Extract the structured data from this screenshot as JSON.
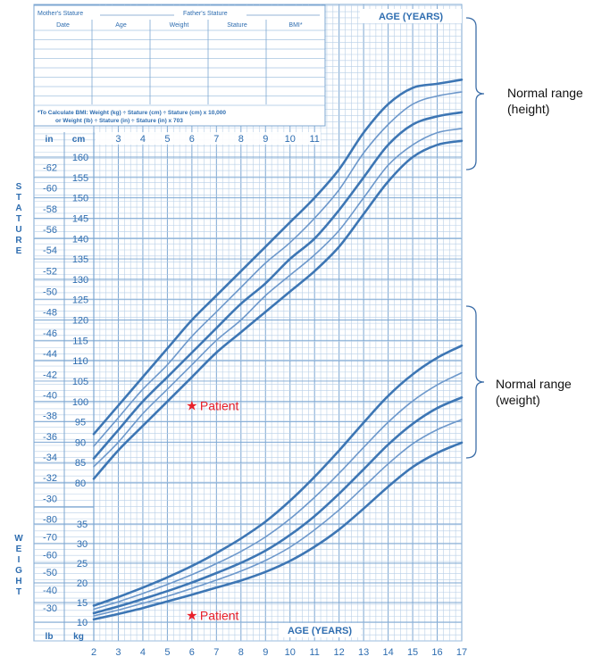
{
  "chart_data": {
    "type": "line",
    "title": "",
    "header": {
      "mothers_stature": "Mother's Stature",
      "fathers_stature": "Father's Stature",
      "columns": [
        "Date",
        "Age",
        "Weight",
        "Stature",
        "BMI*"
      ],
      "bmi_note_line1": "*To Calculate BMI: Weight (kg) ÷ Stature (cm) ÷ Stature (cm) x 10,000",
      "bmi_note_line2": "or Weight (lb) ÷ Stature (in) ÷ Stature (in) x 703"
    },
    "age_axis_label": "AGE (YEARS)",
    "stature_label": "STATURE",
    "weight_label": "WEIGHT",
    "unit_labels": {
      "in": "in",
      "cm": "cm",
      "lb": "lb",
      "kg": "kg"
    },
    "x_ticks_bottom": [
      "2",
      "3",
      "4",
      "5",
      "6",
      "7",
      "8",
      "9",
      "10",
      "11",
      "12",
      "13",
      "14",
      "15",
      "16",
      "17"
    ],
    "x_ticks_top": [
      "3",
      "4",
      "5",
      "6",
      "7",
      "8",
      "9",
      "10",
      "11"
    ],
    "x_range": [
      2,
      17
    ],
    "stature": {
      "ylim_cm": [
        80,
        160
      ],
      "cm_ticks": [
        "80",
        "85",
        "90",
        "95",
        "100",
        "105",
        "110",
        "115",
        "120",
        "125",
        "130",
        "135",
        "140",
        "145",
        "150",
        "155",
        "160"
      ],
      "in_ticks": [
        "30",
        "32",
        "34",
        "36",
        "38",
        "40",
        "42",
        "44",
        "46",
        "48",
        "50",
        "52",
        "54",
        "56",
        "58",
        "60",
        "62"
      ],
      "x": [
        2,
        3,
        4,
        5,
        6,
        7,
        8,
        9,
        10,
        11,
        12,
        13,
        14,
        15,
        16,
        17
      ],
      "series": [
        {
          "values": [
            81,
            88,
            94,
            100,
            106,
            112,
            117,
            122,
            127,
            132,
            138,
            146,
            154,
            160,
            163,
            164
          ],
          "thick": true
        },
        {
          "values": [
            84,
            90,
            97,
            103,
            109,
            115,
            120,
            126,
            131,
            136,
            142,
            150,
            158,
            163,
            166,
            167
          ],
          "thick": false
        },
        {
          "values": [
            86,
            93,
            100,
            106,
            112,
            118,
            124,
            129,
            135,
            140,
            147,
            155,
            163,
            168,
            170,
            171
          ],
          "thick": true
        },
        {
          "values": [
            89,
            96,
            103,
            109,
            116,
            122,
            128,
            134,
            139,
            145,
            152,
            161,
            168,
            173,
            175,
            176
          ],
          "thick": false
        },
        {
          "values": [
            92,
            99,
            106,
            113,
            120,
            126,
            132,
            138,
            144,
            150,
            157,
            166,
            173,
            177,
            178,
            179
          ],
          "thick": true
        }
      ]
    },
    "weight": {
      "ylim_kg": [
        10,
        40
      ],
      "kg_ticks": [
        "10",
        "15",
        "20",
        "25",
        "30",
        "35"
      ],
      "lb_ticks": [
        "30",
        "40",
        "50",
        "60",
        "70",
        "80"
      ],
      "x": [
        2,
        3,
        4,
        5,
        6,
        7,
        8,
        9,
        10,
        11,
        12,
        13,
        14,
        15,
        16,
        17
      ],
      "series": [
        {
          "values": [
            10.7,
            12.1,
            13.6,
            15.3,
            17,
            18.8,
            20.6,
            22.8,
            25.6,
            29.2,
            33.6,
            38.9,
            44.5,
            49.5,
            53.1,
            55.7
          ],
          "thick": true
        },
        {
          "values": [
            11.6,
            13.1,
            14.8,
            16.6,
            18.6,
            20.7,
            23,
            25.7,
            29.1,
            33.5,
            38.6,
            44.4,
            50.3,
            55.4,
            59,
            61.6
          ],
          "thick": false
        },
        {
          "values": [
            12.3,
            14,
            15.9,
            17.9,
            20.1,
            22.5,
            25.1,
            28.2,
            32.2,
            37,
            42.7,
            48.9,
            55.2,
            60.5,
            64.5,
            67.2
          ],
          "thick": true
        },
        {
          "values": [
            13.3,
            15.2,
            17.3,
            19.6,
            22.1,
            24.9,
            28,
            31.7,
            36.3,
            41.8,
            47.9,
            54.5,
            60.9,
            66.3,
            70.4,
            73.5
          ],
          "thick": false
        },
        {
          "values": [
            14.2,
            16.4,
            18.8,
            21.4,
            24.3,
            27.6,
            31.3,
            35.6,
            40.9,
            47,
            53.7,
            60.8,
            67.6,
            73.1,
            77.3,
            80.4
          ],
          "thick": true
        }
      ]
    },
    "patient_markers": [
      {
        "label": "Patient",
        "age": 6,
        "stature_cm": 99,
        "star": "★"
      },
      {
        "label": "Patient",
        "age": 6,
        "weight_kg": 11.7,
        "star": "★"
      }
    ],
    "annotations": {
      "height_range_line1": "Normal range",
      "height_range_line2": "(height)",
      "weight_range_line1": "Normal range",
      "weight_range_line2": "(weight)"
    },
    "colors": {
      "grid_minor": "#b8cfe7",
      "grid_major": "#7da7d2",
      "curve": "#3d76b4",
      "curve_light": "#6d98cb",
      "label": "#2e6db0",
      "marker": "#e8202a",
      "bracket": "#3c6ea8"
    }
  }
}
